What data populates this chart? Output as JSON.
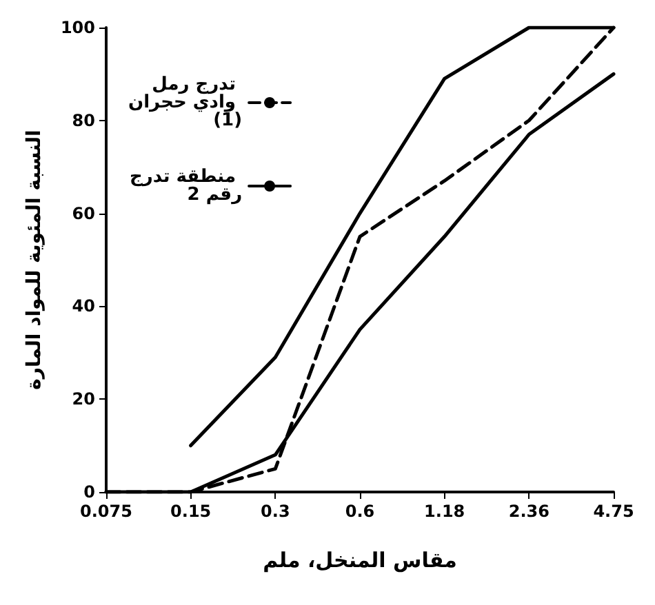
{
  "chart_data": {
    "type": "line",
    "xlabel": "مقاس المنخل، ملم",
    "ylabel": "النسبة المئوية للمواد المارة",
    "categories": [
      "0.075",
      "0.15",
      "0.3",
      "0.6",
      "1.18",
      "2.36",
      "4.75"
    ],
    "series": [
      {
        "name": "تدرج رمل وادي حجران (1)",
        "color": "#000000",
        "line_style": "dashed",
        "values": [
          0,
          0,
          5,
          55,
          67,
          80,
          100
        ]
      },
      {
        "name": "منطقة تدرج رقم 2",
        "color": "#000000",
        "line_style": "solid",
        "values": [
          null,
          10,
          29,
          60,
          89,
          100,
          100
        ]
      },
      {
        "color": "#000000",
        "line_style": "solid",
        "values": [
          0,
          0,
          8,
          35,
          55,
          77,
          90
        ]
      }
    ],
    "ylim": [
      0,
      100
    ],
    "yticks": [
      0,
      20,
      40,
      60,
      80,
      100
    ],
    "grid": false,
    "legend": "top left",
    "marker": "none"
  }
}
